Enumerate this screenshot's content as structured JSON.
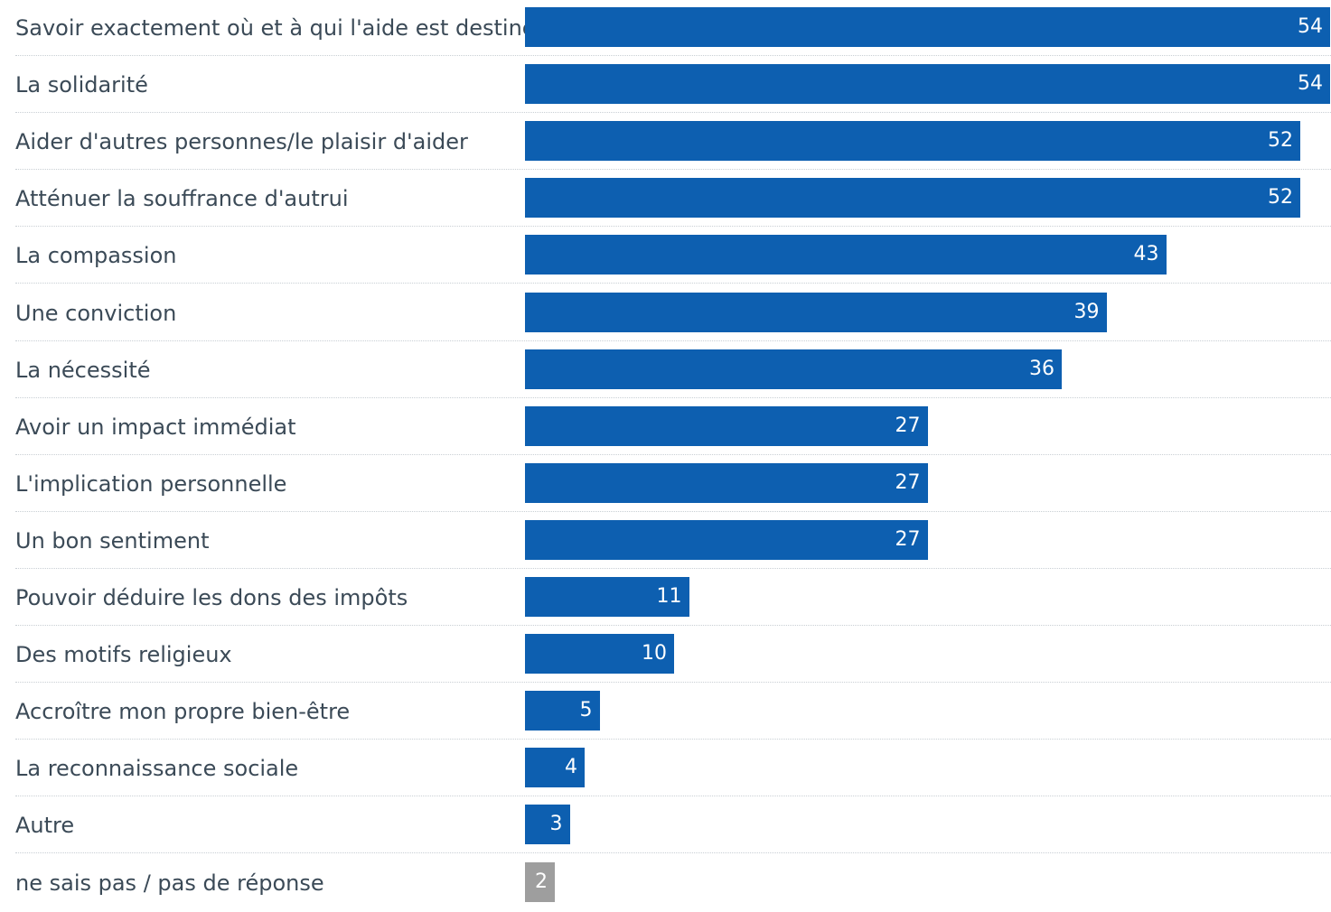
{
  "chart_data": {
    "type": "bar",
    "orientation": "horizontal",
    "categories": [
      "Savoir exactement où et à qui l'aide est destinée",
      "La solidarité",
      "Aider d'autres personnes/le plaisir d'aider",
      "Atténuer la souffrance d'autrui",
      "La compassion",
      "Une conviction",
      "La nécessité",
      "Avoir un impact immédiat",
      "L'implication personnelle",
      "Un bon sentiment",
      "Pouvoir déduire les dons des impôts",
      "Des motifs religieux",
      "Accroître mon propre bien-être",
      "La reconnaissance sociale",
      "Autre",
      "ne sais pas / pas de réponse"
    ],
    "values": [
      54,
      54,
      52,
      52,
      43,
      39,
      36,
      27,
      27,
      27,
      11,
      10,
      5,
      4,
      3,
      2
    ],
    "value_labels": [
      "54",
      "54",
      "52",
      "52",
      "43",
      "39",
      "36",
      "27",
      "27",
      "27",
      "11",
      "10",
      "5",
      "4",
      "3",
      "2"
    ],
    "bar_colors": [
      "#0d5fb0",
      "#0d5fb0",
      "#0d5fb0",
      "#0d5fb0",
      "#0d5fb0",
      "#0d5fb0",
      "#0d5fb0",
      "#0d5fb0",
      "#0d5fb0",
      "#0d5fb0",
      "#0d5fb0",
      "#0d5fb0",
      "#0d5fb0",
      "#0d5fb0",
      "#0d5fb0",
      "#9e9e9e"
    ],
    "xlim": [
      0,
      54
    ],
    "grid": false,
    "legend": "none"
  }
}
